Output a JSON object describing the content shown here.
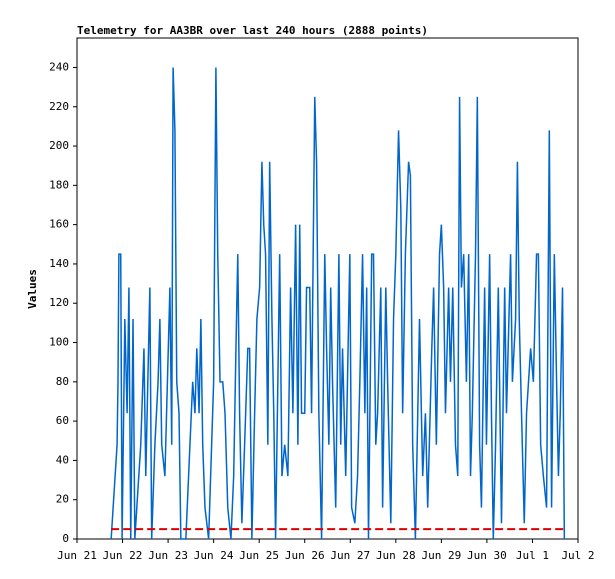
{
  "chart_data": {
    "type": "line",
    "title": "Telemetry for AA3BR over last 240 hours (2888 points)",
    "y_label": "Values",
    "xlim": [
      0,
      11
    ],
    "ylim": [
      0,
      255
    ],
    "xticks": [
      {
        "value": 0,
        "label": "Jun 21"
      },
      {
        "value": 1,
        "label": "Jun 22"
      },
      {
        "value": 2,
        "label": "Jun 23"
      },
      {
        "value": 3,
        "label": "Jun 24"
      },
      {
        "value": 4,
        "label": "Jun 25"
      },
      {
        "value": 5,
        "label": "Jun 26"
      },
      {
        "value": 6,
        "label": "Jun 27"
      },
      {
        "value": 7,
        "label": "Jun 28"
      },
      {
        "value": 8,
        "label": "Jun 29"
      },
      {
        "value": 9,
        "label": "Jun 30"
      },
      {
        "value": 10,
        "label": "Jul 1"
      },
      {
        "value": 11,
        "label": "Jul 2"
      }
    ],
    "yticks": [
      0,
      20,
      40,
      60,
      80,
      100,
      120,
      140,
      160,
      180,
      200,
      220,
      240
    ],
    "series": [
      {
        "color": "#0066cc",
        "style": "solid",
        "x": [
          0.75,
          0.88,
          0.9,
          0.92,
          0.96,
          0.99,
          1.05,
          1.1,
          1.14,
          1.18,
          1.23,
          1.27,
          1.4,
          1.47,
          1.51,
          1.6,
          1.64,
          1.71,
          1.78,
          1.82,
          1.86,
          1.93,
          2.04,
          2.08,
          2.11,
          2.15,
          2.19,
          2.24,
          2.28,
          2.39,
          2.54,
          2.59,
          2.63,
          2.68,
          2.72,
          2.76,
          2.81,
          2.89,
          3.0,
          3.05,
          3.09,
          3.14,
          3.2,
          3.25,
          3.31,
          3.38,
          3.44,
          3.49,
          3.53,
          3.57,
          3.62,
          3.68,
          3.75,
          3.79,
          3.84,
          3.9,
          3.95,
          4.01,
          4.06,
          4.1,
          4.14,
          4.19,
          4.23,
          4.28,
          4.32,
          4.36,
          4.45,
          4.5,
          4.56,
          4.63,
          4.69,
          4.74,
          4.8,
          4.85,
          4.89,
          4.93,
          5.0,
          5.04,
          5.11,
          5.15,
          5.22,
          5.26,
          5.31,
          5.37,
          5.44,
          5.48,
          5.53,
          5.57,
          5.61,
          5.68,
          5.75,
          5.79,
          5.83,
          5.9,
          5.99,
          6.03,
          6.1,
          6.16,
          6.21,
          6.27,
          6.32,
          6.36,
          6.4,
          6.47,
          6.51,
          6.56,
          6.6,
          6.67,
          6.71,
          6.78,
          6.82,
          6.89,
          6.95,
          7.0,
          7.06,
          7.11,
          7.15,
          7.21,
          7.28,
          7.32,
          7.37,
          7.43,
          7.52,
          7.59,
          7.65,
          7.7,
          7.79,
          7.83,
          7.89,
          7.96,
          8.0,
          8.05,
          8.09,
          8.16,
          8.2,
          8.25,
          8.31,
          8.36,
          8.4,
          8.44,
          8.49,
          8.55,
          8.6,
          8.64,
          8.68,
          8.75,
          8.79,
          8.84,
          8.88,
          8.95,
          8.99,
          9.06,
          9.1,
          9.14,
          9.19,
          9.25,
          9.32,
          9.39,
          9.43,
          9.52,
          9.56,
          9.63,
          9.67,
          9.71,
          9.76,
          9.82,
          9.87,
          9.96,
          10.02,
          10.09,
          10.13,
          10.18,
          10.24,
          10.31,
          10.37,
          10.42,
          10.48,
          10.53,
          10.57,
          10.61,
          10.66,
          10.7
        ],
        "values": [
          0,
          48,
          80,
          145,
          145,
          0,
          112,
          64,
          128,
          0,
          112,
          0,
          48,
          97,
          32,
          128,
          0,
          48,
          80,
          112,
          48,
          32,
          128,
          48,
          240,
          208,
          80,
          64,
          0,
          0,
          80,
          64,
          97,
          64,
          112,
          48,
          16,
          0,
          80,
          240,
          145,
          80,
          80,
          64,
          16,
          0,
          32,
          97,
          145,
          64,
          8,
          48,
          97,
          97,
          0,
          64,
          112,
          128,
          192,
          160,
          145,
          48,
          192,
          112,
          64,
          0,
          145,
          32,
          48,
          32,
          128,
          64,
          160,
          48,
          160,
          64,
          64,
          128,
          128,
          64,
          225,
          192,
          64,
          0,
          145,
          97,
          48,
          128,
          80,
          16,
          145,
          48,
          97,
          32,
          145,
          16,
          8,
          32,
          80,
          145,
          64,
          128,
          0,
          145,
          145,
          48,
          64,
          128,
          16,
          128,
          80,
          8,
          112,
          145,
          208,
          168,
          64,
          145,
          192,
          185,
          48,
          0,
          112,
          32,
          64,
          16,
          97,
          128,
          48,
          145,
          160,
          128,
          64,
          128,
          80,
          128,
          48,
          32,
          225,
          128,
          145,
          80,
          145,
          32,
          64,
          145,
          225,
          48,
          16,
          128,
          48,
          145,
          64,
          0,
          48,
          128,
          8,
          128,
          64,
          145,
          80,
          112,
          192,
          112,
          64,
          8,
          64,
          97,
          80,
          145,
          145,
          48,
          32,
          16,
          208,
          16,
          145,
          80,
          32,
          64,
          128,
          0
        ]
      },
      {
        "color": "#dd0000",
        "style": "dashed",
        "x": [
          0.75,
          10.7
        ],
        "values": [
          5,
          5
        ]
      }
    ]
  }
}
